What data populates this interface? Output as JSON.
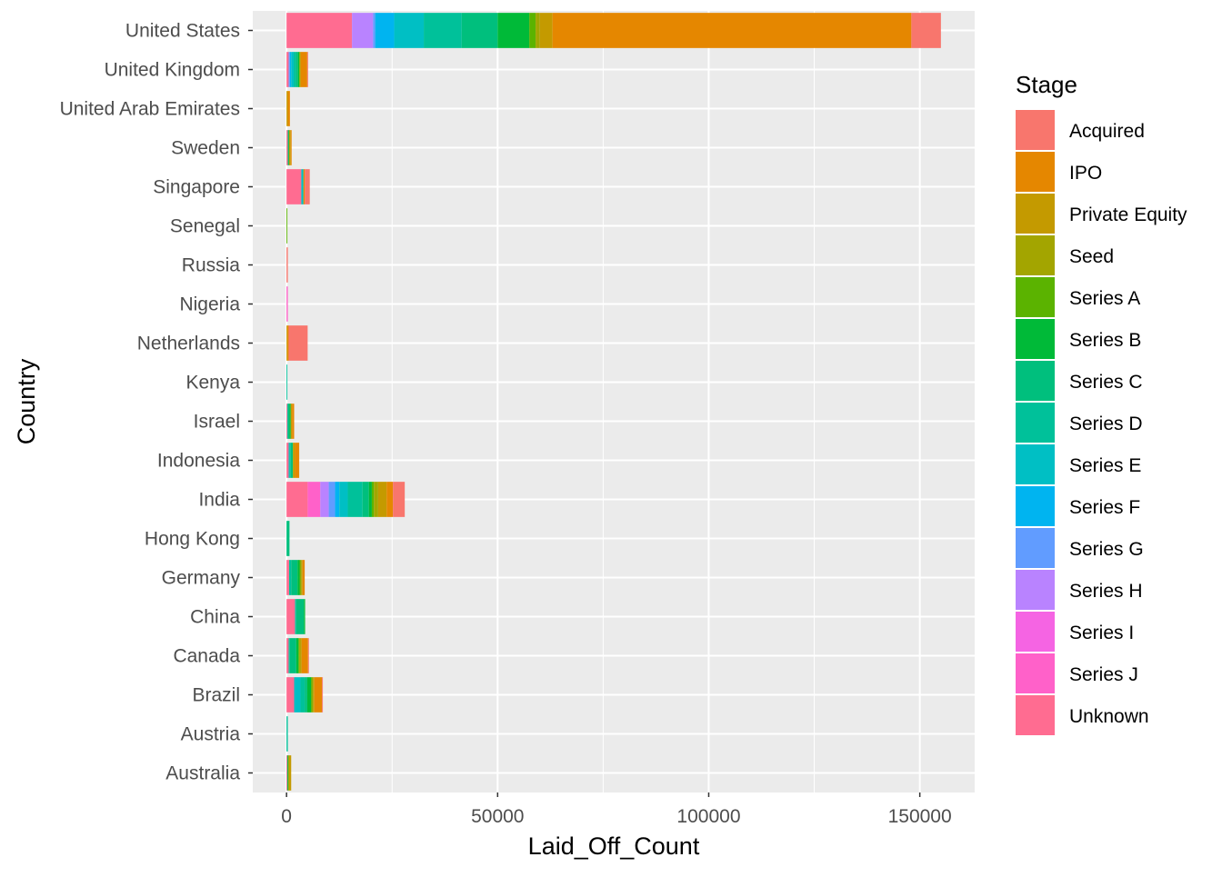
{
  "chart_data": {
    "type": "bar",
    "orientation": "horizontal",
    "stacked": true,
    "xlabel": "Laid_Off_Count",
    "ylabel": "Country",
    "xlim": [
      -8000,
      163000
    ],
    "x_ticks": [
      0,
      50000,
      100000,
      150000
    ],
    "x_tick_labels": [
      "0",
      "50000",
      "100000",
      "150000"
    ],
    "grid": true,
    "legend": {
      "title": "Stage",
      "position": "right"
    },
    "categories": [
      "Australia",
      "Austria",
      "Brazil",
      "Canada",
      "China",
      "Germany",
      "Hong Kong",
      "India",
      "Indonesia",
      "Israel",
      "Kenya",
      "Netherlands",
      "Nigeria",
      "Russia",
      "Senegal",
      "Singapore",
      "Sweden",
      "United Arab Emirates",
      "United Kingdom",
      "United States"
    ],
    "series": [
      {
        "name": "Unknown",
        "color": "#FF6C91",
        "values": [
          200,
          0,
          1800,
          500,
          2000,
          600,
          0,
          5000,
          500,
          200,
          0,
          0,
          0,
          0,
          0,
          3500,
          300,
          0,
          500,
          15500
        ]
      },
      {
        "name": "Series J",
        "color": "#FF61C9",
        "values": [
          0,
          0,
          0,
          0,
          0,
          0,
          0,
          3000,
          0,
          0,
          0,
          0,
          300,
          0,
          0,
          0,
          0,
          0,
          0,
          0
        ]
      },
      {
        "name": "Series I",
        "color": "#F564E3",
        "values": [
          0,
          0,
          0,
          0,
          0,
          0,
          0,
          0,
          0,
          0,
          0,
          0,
          0,
          0,
          0,
          0,
          0,
          0,
          0,
          0
        ]
      },
      {
        "name": "Series H",
        "color": "#B983FF",
        "values": [
          0,
          0,
          0,
          0,
          0,
          0,
          0,
          2000,
          0,
          0,
          0,
          0,
          0,
          0,
          0,
          0,
          0,
          0,
          0,
          5000
        ]
      },
      {
        "name": "Series G",
        "color": "#619CFF",
        "values": [
          0,
          0,
          0,
          0,
          0,
          0,
          0,
          1500,
          0,
          0,
          0,
          0,
          0,
          0,
          0,
          0,
          0,
          0,
          300,
          500
        ]
      },
      {
        "name": "Series F",
        "color": "#00B4F0",
        "values": [
          0,
          0,
          0,
          0,
          0,
          0,
          0,
          1000,
          0,
          0,
          0,
          0,
          0,
          0,
          0,
          0,
          0,
          0,
          300,
          4500
        ]
      },
      {
        "name": "Series E",
        "color": "#00BFC4",
        "values": [
          0,
          0,
          1500,
          0,
          0,
          0,
          0,
          2000,
          200,
          0,
          0,
          0,
          0,
          0,
          0,
          500,
          0,
          0,
          600,
          7000
        ]
      },
      {
        "name": "Series D",
        "color": "#00C19A",
        "values": [
          0,
          300,
          1000,
          300,
          300,
          500,
          0,
          3500,
          300,
          200,
          200,
          0,
          0,
          0,
          0,
          0,
          0,
          0,
          500,
          9000
        ]
      },
      {
        "name": "Series C",
        "color": "#00BF7D",
        "values": [
          0,
          0,
          600,
          1500,
          1800,
          1500,
          700,
          1500,
          500,
          300,
          0,
          0,
          0,
          0,
          0,
          0,
          200,
          0,
          500,
          8500
        ]
      },
      {
        "name": "Series B",
        "color": "#00BA38",
        "values": [
          200,
          0,
          900,
          500,
          300,
          500,
          0,
          700,
          0,
          300,
          0,
          0,
          0,
          0,
          0,
          0,
          100,
          0,
          300,
          7500
        ]
      },
      {
        "name": "Series A",
        "color": "#5BB300",
        "values": [
          0,
          0,
          300,
          200,
          0,
          200,
          0,
          500,
          0,
          0,
          0,
          0,
          0,
          0,
          200,
          0,
          0,
          0,
          100,
          1500
        ]
      },
      {
        "name": "Seed",
        "color": "#A3A500",
        "values": [
          200,
          0,
          200,
          300,
          0,
          300,
          0,
          1000,
          0,
          0,
          0,
          0,
          0,
          0,
          0,
          0,
          0,
          0,
          100,
          1000
        ]
      },
      {
        "name": "Private Equity",
        "color": "#C49A00",
        "values": [
          500,
          0,
          300,
          300,
          0,
          200,
          0,
          2000,
          500,
          300,
          0,
          200,
          0,
          0,
          0,
          0,
          400,
          300,
          200,
          3000
        ]
      },
      {
        "name": "IPO",
        "color": "#E58700",
        "values": [
          0,
          0,
          1800,
          1500,
          0,
          500,
          0,
          1500,
          1000,
          500,
          0,
          300,
          0,
          0,
          0,
          300,
          200,
          500,
          1500,
          85000
        ]
      },
      {
        "name": "Acquired",
        "color": "#F8766D",
        "values": [
          0,
          0,
          200,
          200,
          0,
          0,
          0,
          2800,
          0,
          0,
          0,
          4500,
          0,
          300,
          0,
          1200,
          0,
          0,
          200,
          7000
        ]
      }
    ]
  }
}
